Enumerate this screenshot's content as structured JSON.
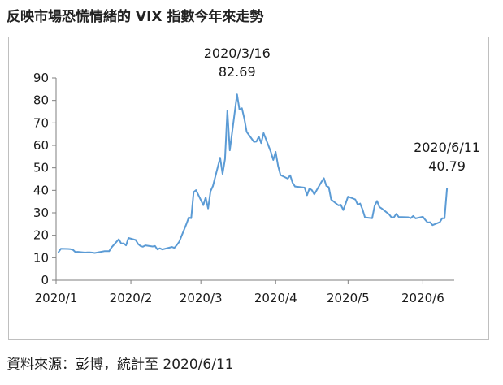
{
  "title": "反映市場恐慌情緒的 VIX 指數今年來走勢",
  "source": "資料來源：彭博，統計至 2020/6/11",
  "colors": {
    "line": "#5b9bd5",
    "axis": "#7f7f7f",
    "border": "#bfbfbf"
  },
  "chart_data": {
    "type": "line",
    "title": "",
    "xlabel": "",
    "ylabel": "",
    "ylim": [
      0,
      90
    ],
    "yticks": [
      0,
      10,
      20,
      30,
      40,
      50,
      60,
      70,
      80,
      90
    ],
    "xlim": [
      "2020-01-01",
      "2020-06-14"
    ],
    "xticks": [
      {
        "date": "2020-01-01",
        "label": "2020/1"
      },
      {
        "date": "2020-02-01",
        "label": "2020/2"
      },
      {
        "date": "2020-03-01",
        "label": "2020/3"
      },
      {
        "date": "2020-04-01",
        "label": "2020/4"
      },
      {
        "date": "2020-05-01",
        "label": "2020/5"
      },
      {
        "date": "2020-06-01",
        "label": "2020/6"
      }
    ],
    "grid": false,
    "legend": "none",
    "series": [
      {
        "x": [
          "2020-01-02",
          "2020-01-03",
          "2020-01-06",
          "2020-01-07",
          "2020-01-08",
          "2020-01-09",
          "2020-01-10",
          "2020-01-13",
          "2020-01-14",
          "2020-01-15",
          "2020-01-16",
          "2020-01-17",
          "2020-01-21",
          "2020-01-22",
          "2020-01-23",
          "2020-01-24",
          "2020-01-27",
          "2020-01-28",
          "2020-01-29",
          "2020-01-30",
          "2020-01-31",
          "2020-02-03",
          "2020-02-04",
          "2020-02-05",
          "2020-02-06",
          "2020-02-07",
          "2020-02-10",
          "2020-02-11",
          "2020-02-12",
          "2020-02-13",
          "2020-02-14",
          "2020-02-18",
          "2020-02-19",
          "2020-02-20",
          "2020-02-21",
          "2020-02-24",
          "2020-02-25",
          "2020-02-26",
          "2020-02-27",
          "2020-02-28",
          "2020-03-02",
          "2020-03-03",
          "2020-03-04",
          "2020-03-05",
          "2020-03-06",
          "2020-03-09",
          "2020-03-10",
          "2020-03-11",
          "2020-03-12",
          "2020-03-13",
          "2020-03-16",
          "2020-03-17",
          "2020-03-18",
          "2020-03-19",
          "2020-03-20",
          "2020-03-23",
          "2020-03-24",
          "2020-03-25",
          "2020-03-26",
          "2020-03-27",
          "2020-03-30",
          "2020-03-31",
          "2020-04-01",
          "2020-04-02",
          "2020-04-03",
          "2020-04-06",
          "2020-04-07",
          "2020-04-08",
          "2020-04-09",
          "2020-04-13",
          "2020-04-14",
          "2020-04-15",
          "2020-04-16",
          "2020-04-17",
          "2020-04-20",
          "2020-04-21",
          "2020-04-22",
          "2020-04-23",
          "2020-04-24",
          "2020-04-27",
          "2020-04-28",
          "2020-04-29",
          "2020-04-30",
          "2020-05-01",
          "2020-05-04",
          "2020-05-05",
          "2020-05-06",
          "2020-05-07",
          "2020-05-08",
          "2020-05-11",
          "2020-05-12",
          "2020-05-13",
          "2020-05-14",
          "2020-05-15",
          "2020-05-18",
          "2020-05-19",
          "2020-05-20",
          "2020-05-21",
          "2020-05-22",
          "2020-05-26",
          "2020-05-27",
          "2020-05-28",
          "2020-05-29",
          "2020-06-01",
          "2020-06-02",
          "2020-06-03",
          "2020-06-04",
          "2020-06-05",
          "2020-06-08",
          "2020-06-09",
          "2020-06-10",
          "2020-06-11"
        ],
        "y": [
          12.5,
          14.0,
          13.9,
          13.8,
          13.5,
          12.5,
          12.6,
          12.3,
          12.4,
          12.4,
          12.3,
          12.1,
          12.9,
          12.9,
          12.9,
          14.6,
          18.2,
          16.3,
          16.4,
          15.5,
          18.8,
          17.9,
          16.1,
          15.2,
          14.9,
          15.5,
          15.0,
          15.2,
          13.7,
          14.2,
          13.7,
          14.8,
          14.4,
          15.6,
          17.1,
          25.0,
          27.9,
          27.6,
          39.2,
          40.1,
          33.4,
          36.8,
          31.9,
          39.6,
          41.9,
          54.5,
          47.3,
          53.9,
          75.5,
          57.8,
          82.7,
          75.9,
          76.5,
          72.0,
          66.0,
          61.6,
          61.7,
          63.9,
          61.0,
          65.5,
          57.1,
          53.5,
          57.1,
          50.9,
          46.8,
          45.2,
          46.7,
          43.4,
          41.7,
          41.2,
          37.8,
          40.8,
          40.1,
          38.2,
          43.8,
          45.4,
          41.98,
          41.38,
          35.93,
          33.29,
          33.57,
          31.23,
          34.15,
          37.19,
          35.97,
          33.61,
          34.12,
          31.44,
          27.98,
          27.57,
          33.04,
          35.28,
          32.61,
          31.89,
          29.3,
          27.96,
          27.99,
          29.53,
          28.16,
          28.01,
          27.62,
          28.59,
          27.51,
          28.23,
          26.84,
          25.66,
          25.81,
          24.52,
          25.81,
          27.57,
          27.57,
          40.79
        ]
      }
    ],
    "annotations": [
      {
        "date": "2020-03-16",
        "value": 82.69,
        "line1": "2020/3/16",
        "line2": "82.69"
      },
      {
        "date": "2020-06-11",
        "value": 40.79,
        "line1": "2020/6/11",
        "line2": "40.79"
      }
    ]
  }
}
